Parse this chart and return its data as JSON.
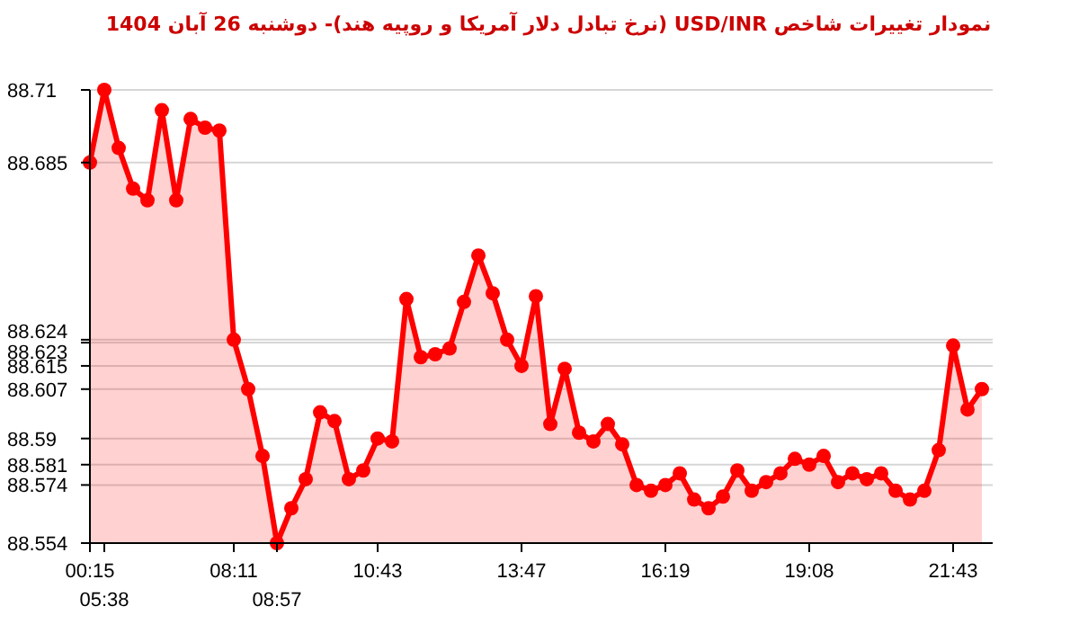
{
  "chart_data": {
    "type": "area",
    "title": "نمودار تغییرات شاخص USD/INR (نرخ تبادل دلار آمریکا و روپیه هند)- دوشنبه 26 آبان 1404",
    "categories": [
      "00:15",
      "05:38",
      null,
      null,
      null,
      null,
      null,
      null,
      null,
      null,
      "08:11",
      null,
      null,
      "08:57",
      null,
      null,
      null,
      null,
      null,
      null,
      "10:43",
      null,
      null,
      null,
      null,
      null,
      null,
      null,
      null,
      null,
      "13:47",
      null,
      null,
      null,
      null,
      null,
      null,
      null,
      null,
      null,
      "16:19",
      null,
      null,
      null,
      null,
      null,
      null,
      null,
      null,
      null,
      "19:08",
      null,
      null,
      null,
      null,
      null,
      null,
      null,
      null,
      null,
      "21:43",
      null,
      null
    ],
    "series": [
      {
        "color": "#ff0000",
        "values": [
          88.685,
          88.71,
          88.69,
          88.676,
          88.672,
          88.703,
          88.672,
          88.7,
          88.697,
          88.696,
          88.624,
          88.607,
          88.584,
          88.554,
          88.566,
          88.576,
          88.599,
          88.596,
          88.576,
          88.579,
          88.59,
          88.589,
          88.638,
          88.618,
          88.619,
          88.621,
          88.637,
          88.653,
          88.64,
          88.624,
          88.615,
          88.639,
          88.595,
          88.614,
          88.592,
          88.589,
          88.595,
          88.588,
          88.574,
          88.572,
          88.574,
          88.578,
          88.569,
          88.566,
          88.57,
          88.579,
          88.572,
          88.575,
          88.578,
          88.583,
          88.581,
          88.584,
          88.575,
          88.578,
          88.576,
          88.578,
          88.572,
          88.569,
          88.572,
          88.586,
          88.622,
          88.6,
          88.607
        ]
      }
    ],
    "ylim": [
      88.554,
      88.71
    ],
    "yticks": [
      88.554,
      88.574,
      88.581,
      88.59,
      88.607,
      88.615,
      88.623,
      88.624,
      88.685,
      88.71
    ],
    "grid": "y",
    "marker": "circle",
    "line_style": "solid"
  }
}
